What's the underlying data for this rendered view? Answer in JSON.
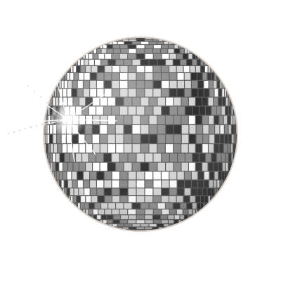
{
  "subject": {
    "object_icon": "disco-ball-icon",
    "palette": {
      "background": "#ffffff",
      "tile_dark": "#2e2e2e",
      "tile_mid": "#8a8a8a",
      "tile_light": "#d4d4d4",
      "tile_highlight": "#ffffff",
      "grout": "#5a5a5a",
      "rim": "#d9cfc6",
      "sparkle": "#ffffff"
    },
    "effects": [
      "sparkle-glint-left",
      "specular-highlights"
    ]
  }
}
